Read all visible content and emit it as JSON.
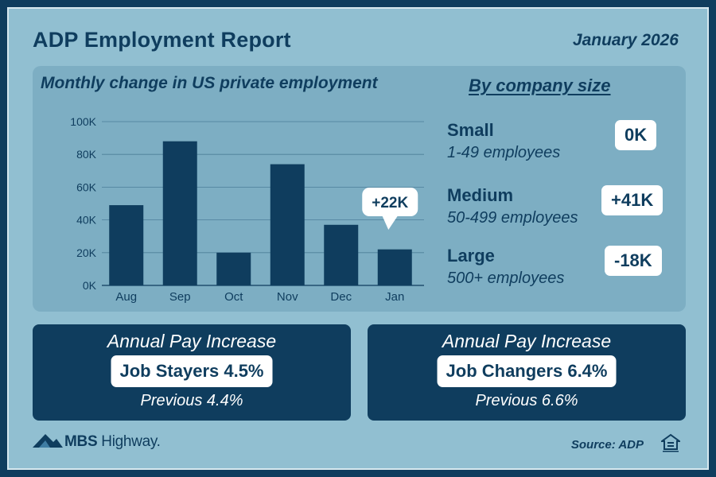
{
  "header": {
    "title": "ADP Employment Report",
    "date": "January 2026"
  },
  "chart_data": {
    "type": "bar",
    "title": "Monthly change in US private employment",
    "categories": [
      "Aug",
      "Sep",
      "Oct",
      "Nov",
      "Dec",
      "Jan"
    ],
    "values": [
      49000,
      88000,
      20000,
      74000,
      37000,
      22000
    ],
    "ylim": [
      0,
      100000
    ],
    "yticks": [
      0,
      20000,
      40000,
      60000,
      80000,
      100000
    ],
    "ytick_labels": [
      "0K",
      "20K",
      "40K",
      "60K",
      "80K",
      "100K"
    ],
    "xlabel": "",
    "ylabel": "",
    "grid": true,
    "annotation": {
      "category": "Jan",
      "label": "+22K"
    }
  },
  "company_size": {
    "title": "By company size",
    "items": [
      {
        "name": "Small",
        "range": "1-49 employees",
        "change": "0K"
      },
      {
        "name": "Medium",
        "range": "50-499 employees",
        "change": "+41K"
      },
      {
        "name": "Large",
        "range": "500+ employees",
        "change": "-18K"
      }
    ]
  },
  "pay": {
    "stayers": {
      "heading": "Annual Pay Increase",
      "label": "Job Stayers 4.5%",
      "previous": "Previous 4.4%"
    },
    "changers": {
      "heading": "Annual Pay Increase",
      "label": "Job Changers 6.4%",
      "previous": "Previous 6.6%"
    }
  },
  "footer": {
    "brand_bold": "MBS",
    "brand_rest": " Highway.",
    "source": "Source: ADP",
    "icon": "equal-housing-opportunity-icon"
  },
  "colors": {
    "navy": "#0f3d5e",
    "background": "#91bfd1",
    "panel": "#7daec3",
    "gridline": "#4d7f99"
  }
}
